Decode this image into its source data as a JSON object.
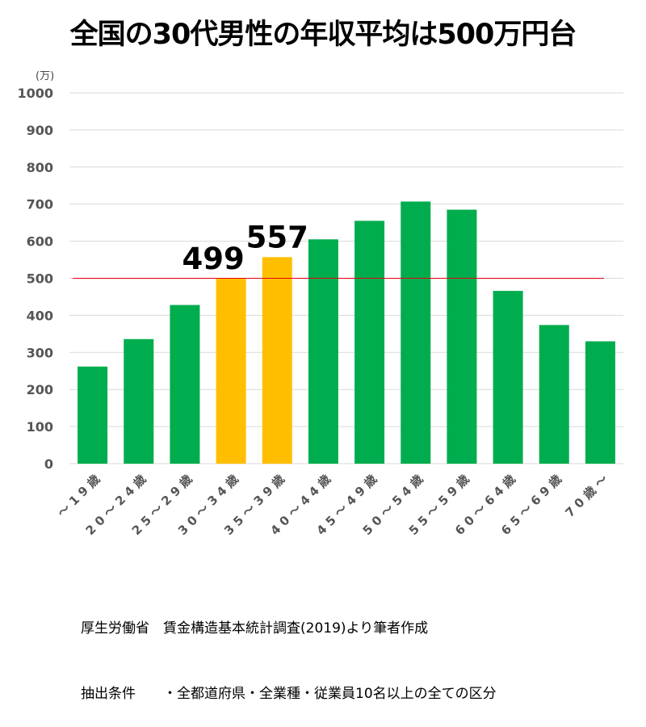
{
  "title": "全国の30代男性の年収平均は500万円台",
  "source_lines": [
    "厚生労働省　賃金構造基本統計調査(2019)より筆者作成",
    "抽出条件　　・全都道府県・全業種・従業員10名以上の全ての区分"
  ],
  "colors": {
    "normal": "#00AD4E",
    "highlight": "#FFBF00",
    "reference_line": "#E60012",
    "grid": "#D9D9D9"
  },
  "chart_data": {
    "type": "bar",
    "title": "全国の30代男性の年収平均は500万円台",
    "y_unit": "(万)",
    "ylim": [
      0,
      1000
    ],
    "y_ticks": [
      0,
      100,
      200,
      300,
      400,
      500,
      600,
      700,
      800,
      900,
      1000
    ],
    "grid": true,
    "categories": [
      "～19歳",
      "20～24歳",
      "25～29歳",
      "30～34歳",
      "35～39歳",
      "40～44歳",
      "45～49歳",
      "50～54歳",
      "55～59歳",
      "60～64歳",
      "65～69歳",
      "70歳～"
    ],
    "values": [
      262,
      336,
      428,
      499,
      557,
      605,
      655,
      707,
      685,
      466,
      374,
      330
    ],
    "highlighted": [
      "30～34歳",
      "35～39歳"
    ],
    "data_labels": [
      {
        "category": "30～34歳",
        "text": "499"
      },
      {
        "category": "35～39歳",
        "text": "557"
      }
    ],
    "reference_line": 500
  }
}
